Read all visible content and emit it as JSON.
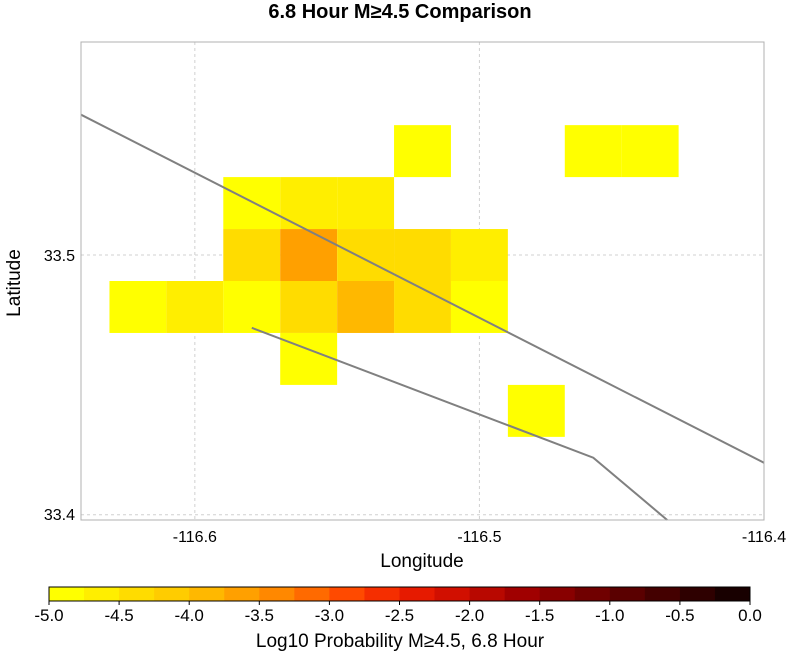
{
  "chart_data": {
    "type": "heatmap",
    "title": "6.8 Hour M≥4.5 Comparison",
    "xlabel": "Longitude",
    "ylabel": "Latitude",
    "xlim": [
      -116.64,
      -116.4
    ],
    "ylim": [
      33.398,
      33.582
    ],
    "grid": true,
    "x_ticks": [
      {
        "value": -116.6,
        "label": "-116.6"
      },
      {
        "value": -116.5,
        "label": "-116.5"
      },
      {
        "value": -116.4,
        "label": "-116.4"
      }
    ],
    "y_ticks": [
      {
        "value": 33.5,
        "label": "33.5"
      },
      {
        "value": 33.4,
        "label": "33.4"
      }
    ],
    "cell_size": 0.02,
    "cells": [
      {
        "lon": -116.52,
        "lat": 33.54,
        "value": -4.9
      },
      {
        "lon": -116.46,
        "lat": 33.54,
        "value": -4.9
      },
      {
        "lon": -116.44,
        "lat": 33.54,
        "value": -4.9
      },
      {
        "lon": -116.58,
        "lat": 33.52,
        "value": -4.9
      },
      {
        "lon": -116.56,
        "lat": 33.52,
        "value": -4.75
      },
      {
        "lon": -116.54,
        "lat": 33.52,
        "value": -4.75
      },
      {
        "lon": -116.58,
        "lat": 33.5,
        "value": -4.35
      },
      {
        "lon": -116.56,
        "lat": 33.5,
        "value": -3.6
      },
      {
        "lon": -116.54,
        "lat": 33.5,
        "value": -4.3
      },
      {
        "lon": -116.52,
        "lat": 33.5,
        "value": -4.5
      },
      {
        "lon": -116.5,
        "lat": 33.5,
        "value": -4.7
      },
      {
        "lon": -116.62,
        "lat": 33.48,
        "value": -4.9
      },
      {
        "lon": -116.6,
        "lat": 33.48,
        "value": -4.6
      },
      {
        "lon": -116.58,
        "lat": 33.48,
        "value": -4.85
      },
      {
        "lon": -116.56,
        "lat": 33.48,
        "value": -4.3
      },
      {
        "lon": -116.54,
        "lat": 33.48,
        "value": -4.0
      },
      {
        "lon": -116.52,
        "lat": 33.48,
        "value": -4.45
      },
      {
        "lon": -116.5,
        "lat": 33.48,
        "value": -4.9
      },
      {
        "lon": -116.56,
        "lat": 33.46,
        "value": -4.9
      },
      {
        "lon": -116.48,
        "lat": 33.44,
        "value": -4.9
      }
    ],
    "fault_lines": [
      [
        [
          -116.64,
          33.554
        ],
        [
          -116.4,
          33.42
        ]
      ],
      [
        [
          -116.58,
          33.472
        ],
        [
          -116.46,
          33.422
        ],
        [
          -116.434,
          33.398
        ]
      ]
    ],
    "colorbar": {
      "label": "Log10 Probability M≥4.5, 6.8 Hour",
      "min": -5.0,
      "max": 0.0,
      "ticks": [
        "-5.0",
        "-4.5",
        "-4.0",
        "-3.5",
        "-3.0",
        "-2.5",
        "-2.0",
        "-1.5",
        "-1.0",
        "-0.5",
        "0.0"
      ],
      "colors": [
        "#ffff00",
        "#ffee00",
        "#ffdc00",
        "#ffcc00",
        "#ffb800",
        "#ffa000",
        "#ff8800",
        "#ff6a00",
        "#ff4a00",
        "#f52e00",
        "#e61a00",
        "#d10f00",
        "#b80800",
        "#a00000",
        "#880000",
        "#700000",
        "#5a0000",
        "#440000",
        "#2e0000",
        "#180000"
      ]
    }
  }
}
